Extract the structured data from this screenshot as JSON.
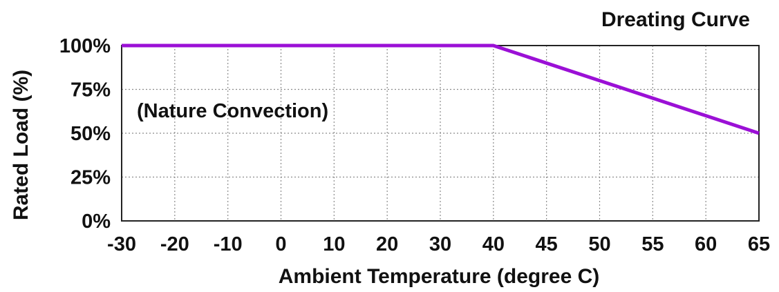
{
  "chart_data": {
    "type": "line",
    "title": "Dreating Curve",
    "xlabel": "Ambient Temperature (degree C)",
    "ylabel": "Rated Load (%)",
    "annotation": "(Nature Convection)",
    "x_tick_labels": [
      "-30",
      "-20",
      "-10",
      "0",
      "10",
      "20",
      "30",
      "40",
      "45",
      "50",
      "55",
      "60",
      "65"
    ],
    "y_tick_labels": [
      "0%",
      "25%",
      "50%",
      "75%",
      "100%"
    ],
    "ylim": [
      0,
      100
    ],
    "grid": true,
    "series": [
      {
        "color": "#9b10d6",
        "x": [
          -30,
          40,
          65
        ],
        "y": [
          100,
          100,
          50
        ]
      }
    ]
  }
}
